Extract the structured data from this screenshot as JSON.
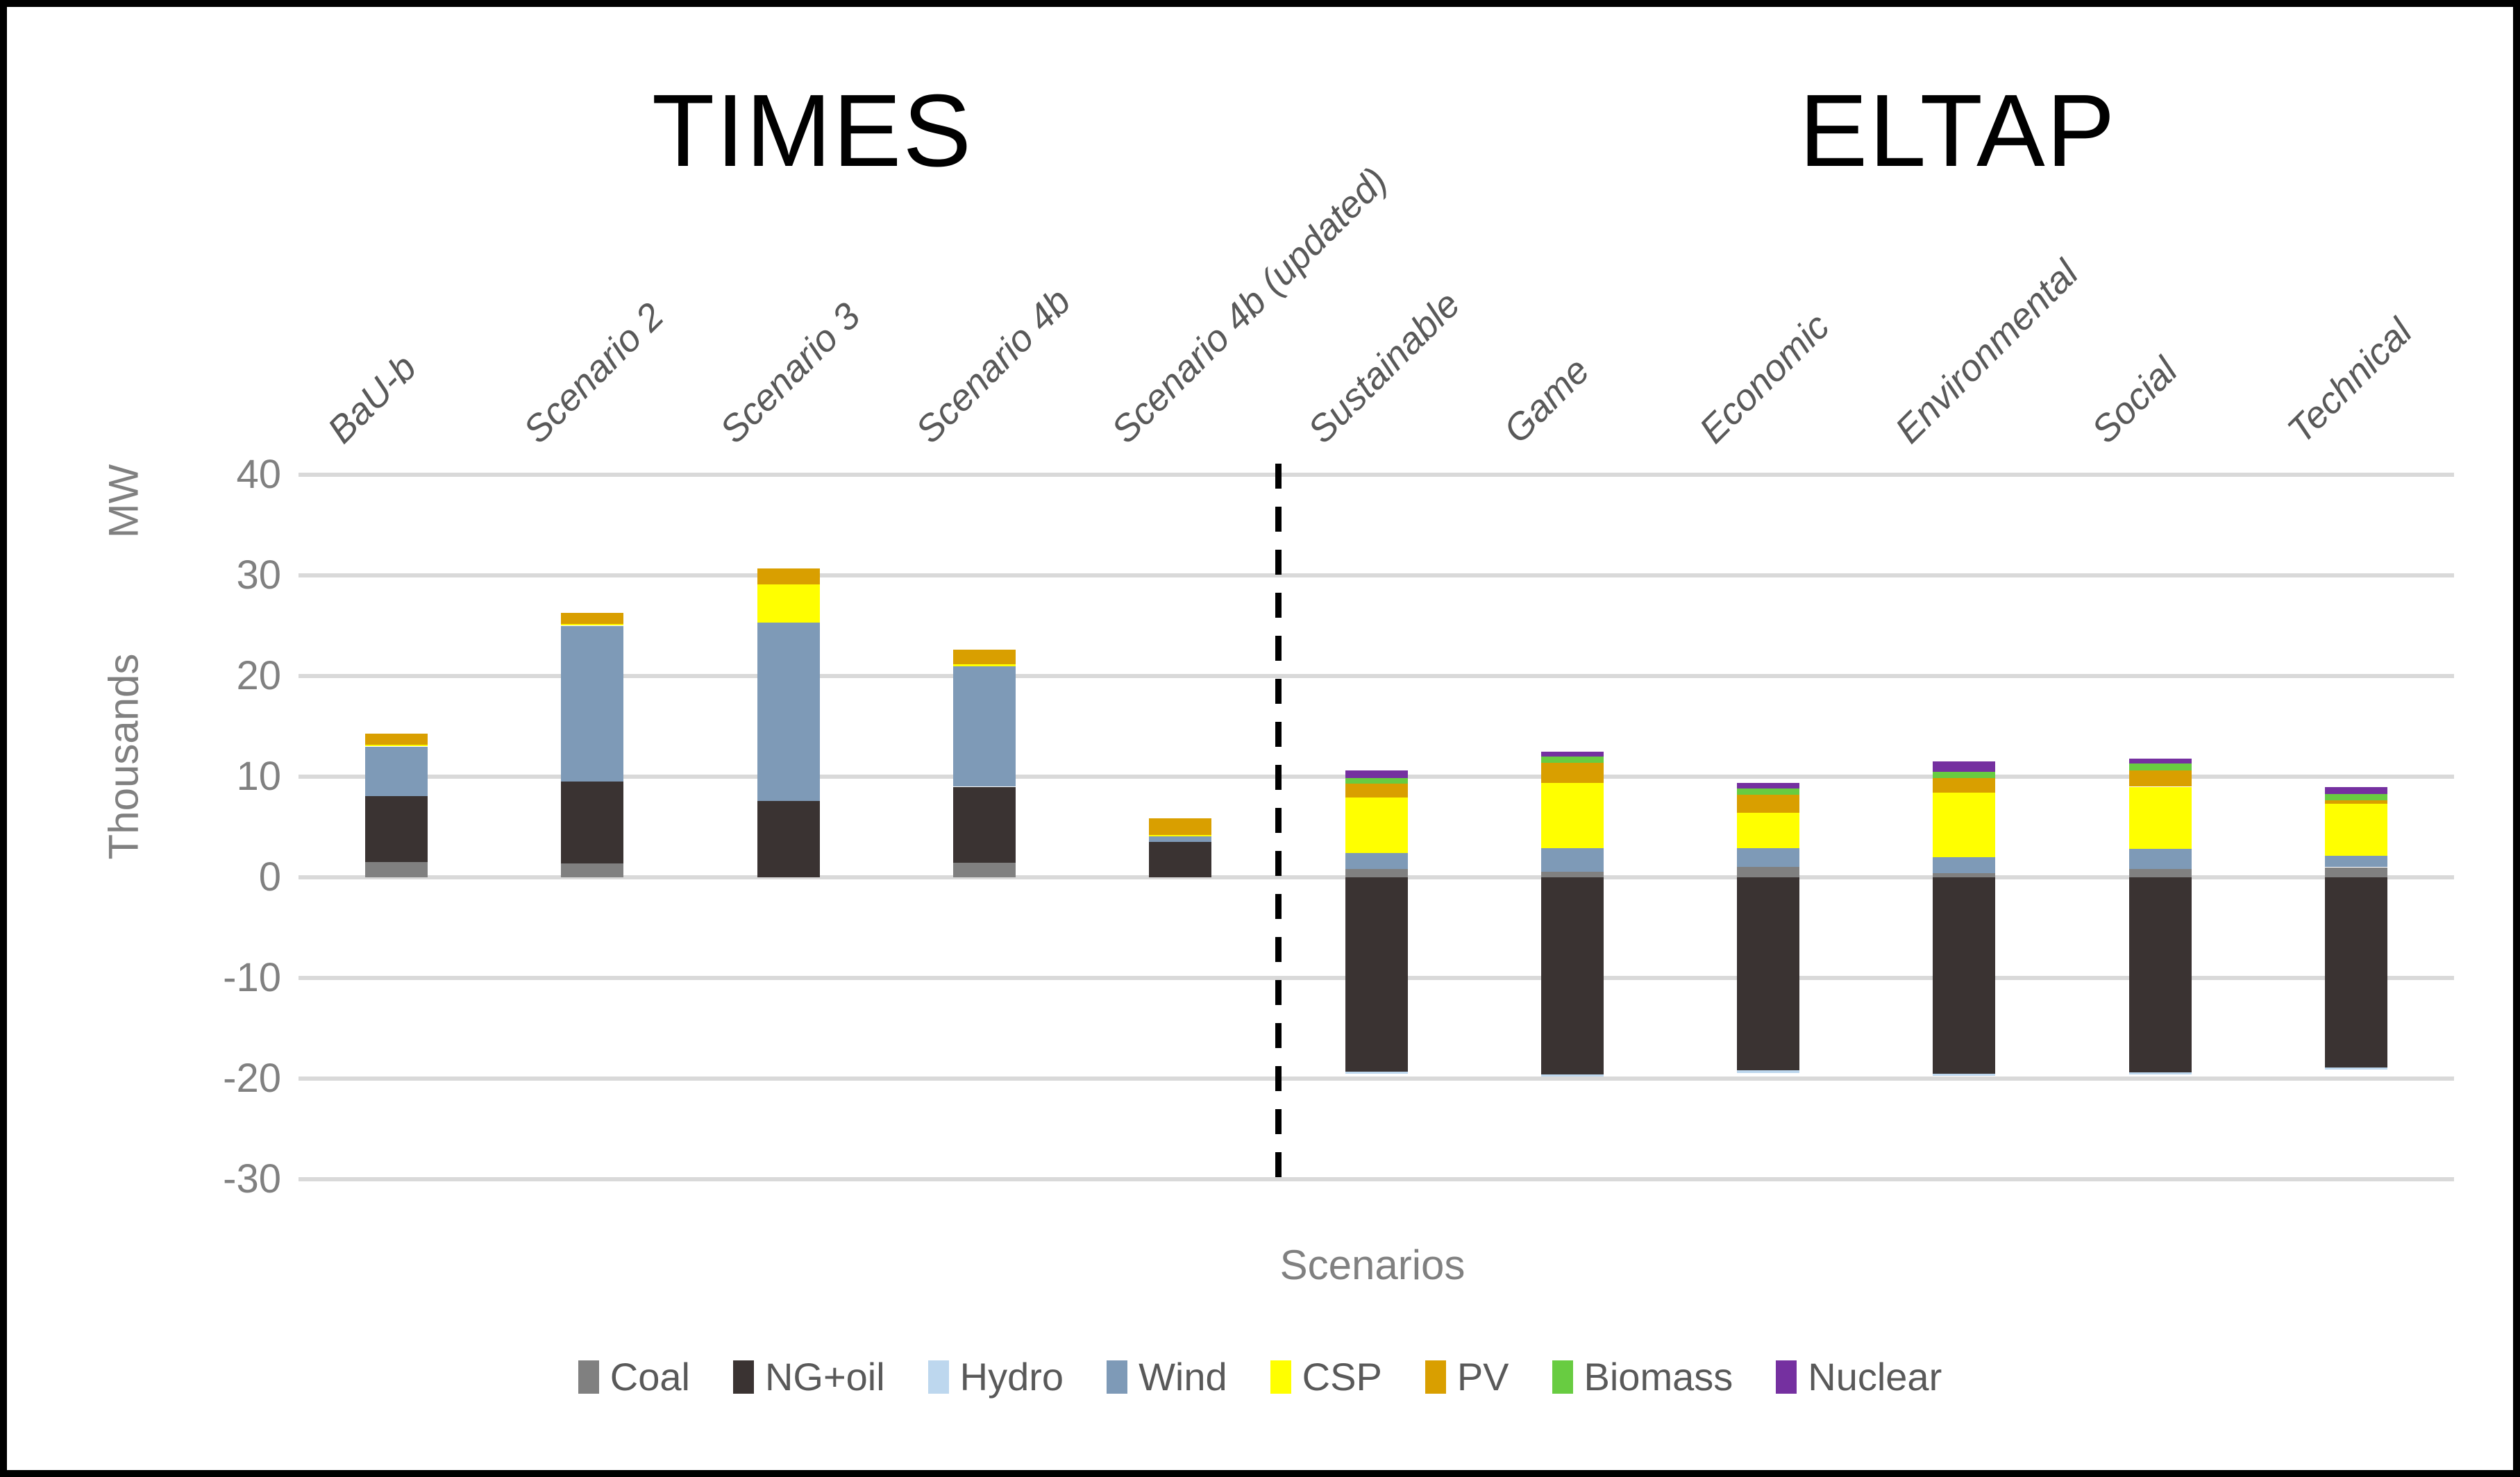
{
  "page": {
    "background": "#FFFFFF",
    "border_color": "#000000"
  },
  "group_titles": {
    "left": "TIMES",
    "right": "ELTAP"
  },
  "y_axis": {
    "unit_label": "MW",
    "scale_label": "Thousands",
    "ticks": [
      40,
      30,
      20,
      10,
      0,
      -10,
      -20,
      -30
    ]
  },
  "x_axis": {
    "title": "Scenarios"
  },
  "chart_data": {
    "type": "bar",
    "stacked": true,
    "title": "",
    "xlabel": "Scenarios",
    "ylabel": "MW",
    "display_units": "Thousands",
    "ylim": [
      -30,
      40
    ],
    "ytick_step": 10,
    "grid": true,
    "gridline_color": "#D9D9D9",
    "legend_position": "bottom",
    "groups": [
      {
        "name": "TIMES",
        "category_indexes": [
          0,
          1,
          2,
          3,
          4
        ]
      },
      {
        "name": "ELTAP",
        "category_indexes": [
          5,
          6,
          7,
          8,
          9,
          10
        ]
      }
    ],
    "divider_after_category_index": 4,
    "categories": [
      "BaU-b",
      "Scenario 2",
      "Scenario 3",
      "Scenario 4b",
      "Scenario 4b (updated)",
      "Sustainable",
      "Game",
      "Economic",
      "Environmental",
      "Social",
      "Technical"
    ],
    "series": [
      {
        "name": "Coal",
        "color": "#808080",
        "values": [
          1.5,
          1.4,
          0,
          1.45,
          0,
          0.8,
          0.55,
          1.05,
          0.4,
          0.85,
          1.0
        ]
      },
      {
        "name": "NG+oil",
        "color": "#3A3332",
        "values": [
          6.6,
          8.1,
          7.6,
          7.55,
          3.5,
          -19.3,
          -19.6,
          -19.2,
          -19.5,
          -19.4,
          -18.9
        ]
      },
      {
        "name": "Hydro",
        "color": "#BDD7EE",
        "values": [
          0,
          0,
          0,
          0,
          0,
          -0.25,
          -0.2,
          -0.25,
          -0.25,
          -0.2,
          -0.2
        ]
      },
      {
        "name": "Wind",
        "color": "#7E9AB7",
        "values": [
          4.9,
          15.5,
          17.7,
          11.95,
          0.55,
          1.6,
          2.35,
          1.85,
          1.6,
          1.95,
          1.15
        ]
      },
      {
        "name": "CSP",
        "color": "#FFFF00",
        "values": [
          0.2,
          0.2,
          3.8,
          0.2,
          0.15,
          5.55,
          6.5,
          3.5,
          6.4,
          6.2,
          5.15
        ]
      },
      {
        "name": "PV",
        "color": "#D99F00",
        "values": [
          1.1,
          1.1,
          1.6,
          1.45,
          1.65,
          1.35,
          2.0,
          1.8,
          1.45,
          1.6,
          0.35
        ]
      },
      {
        "name": "Biomass",
        "color": "#68CC41",
        "values": [
          0,
          0,
          0,
          0,
          0,
          0.55,
          0.6,
          0.65,
          0.65,
          0.7,
          0.6
        ]
      },
      {
        "name": "Nuclear",
        "color": "#7530A0",
        "values": [
          0,
          0,
          0,
          0,
          0,
          0.75,
          0.5,
          0.55,
          1.0,
          0.5,
          0.75
        ]
      }
    ]
  }
}
